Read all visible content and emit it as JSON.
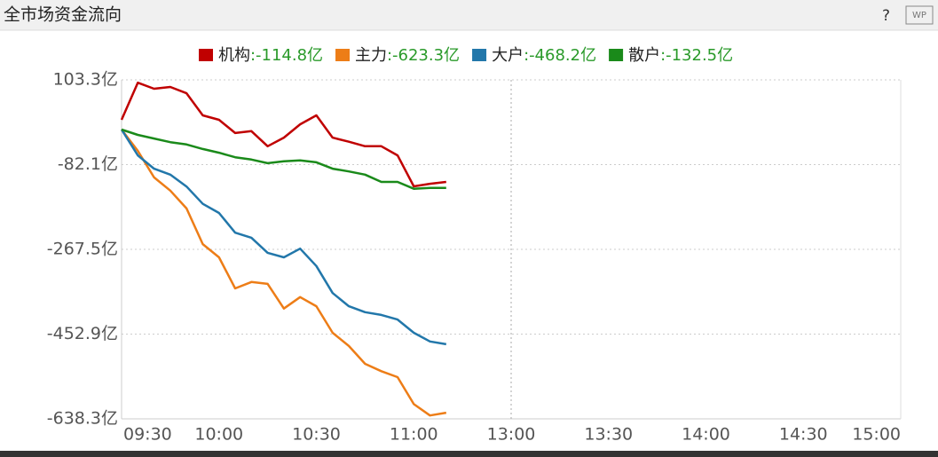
{
  "chart_data": {
    "type": "line",
    "title": "全市场资金流向",
    "help": "?",
    "badge": "WP",
    "x": [
      "09:30",
      "09:35",
      "09:40",
      "09:45",
      "09:50",
      "09:55",
      "10:00",
      "10:05",
      "10:10",
      "10:15",
      "10:20",
      "10:25",
      "10:30",
      "10:35",
      "10:40",
      "10:45",
      "10:50",
      "10:55",
      "11:00",
      "11:05",
      "11:10"
    ],
    "series": [
      {
        "name": "机构",
        "summary": "-114.8亿",
        "color": "#c00000",
        "values": [
          15.9,
          97,
          83.9,
          87.8,
          74,
          25.6,
          16,
          -13,
          -9,
          -42,
          -23,
          6,
          25.6,
          -23,
          -32,
          -42,
          -42,
          -62,
          -129.7,
          -124,
          -120
        ]
      },
      {
        "name": "主力",
        "summary": "-623.3亿",
        "color": "#ed7d17",
        "values": [
          -5.4,
          -52,
          -110,
          -139,
          -178,
          -256,
          -285,
          -353,
          -339,
          -343,
          -397,
          -372,
          -392,
          -450,
          -479,
          -518,
          -534,
          -547,
          -606,
          -631,
          -625
        ]
      },
      {
        "name": "大户",
        "summary": "-468.2亿",
        "color": "#2277aa",
        "values": [
          -5.4,
          -62,
          -91,
          -104,
          -130,
          -168,
          -188,
          -231,
          -242,
          -275,
          -285,
          -266,
          -304,
          -363,
          -392,
          -405,
          -411,
          -421,
          -450,
          -469,
          -475
        ]
      },
      {
        "name": "散户",
        "summary": "-132.5亿",
        "color": "#1a8a1a",
        "values": [
          -5.4,
          -17,
          -25,
          -33,
          -38,
          -48,
          -56,
          -66,
          -71,
          -79,
          -75,
          -73,
          -77,
          -91,
          -97,
          -104,
          -120,
          -120,
          -135,
          -133,
          -133
        ]
      }
    ],
    "summary_color": "#2a9a2a",
    "xlim": [
      "09:30",
      "15:00"
    ],
    "xticks": [
      "09:30",
      "10:00",
      "10:30",
      "11:00",
      "13:00",
      "13:30",
      "14:00",
      "14:30",
      "15:00"
    ],
    "ylim": [
      -638.3,
      103.3
    ],
    "yticks": [
      {
        "value": 103.3,
        "label": "103.3亿"
      },
      {
        "value": -82.1,
        "label": "-82.1亿"
      },
      {
        "value": -267.5,
        "label": "-267.5亿"
      },
      {
        "value": -452.9,
        "label": "-452.9亿"
      },
      {
        "value": -638.3,
        "label": "-638.3亿"
      }
    ],
    "grid": true
  }
}
